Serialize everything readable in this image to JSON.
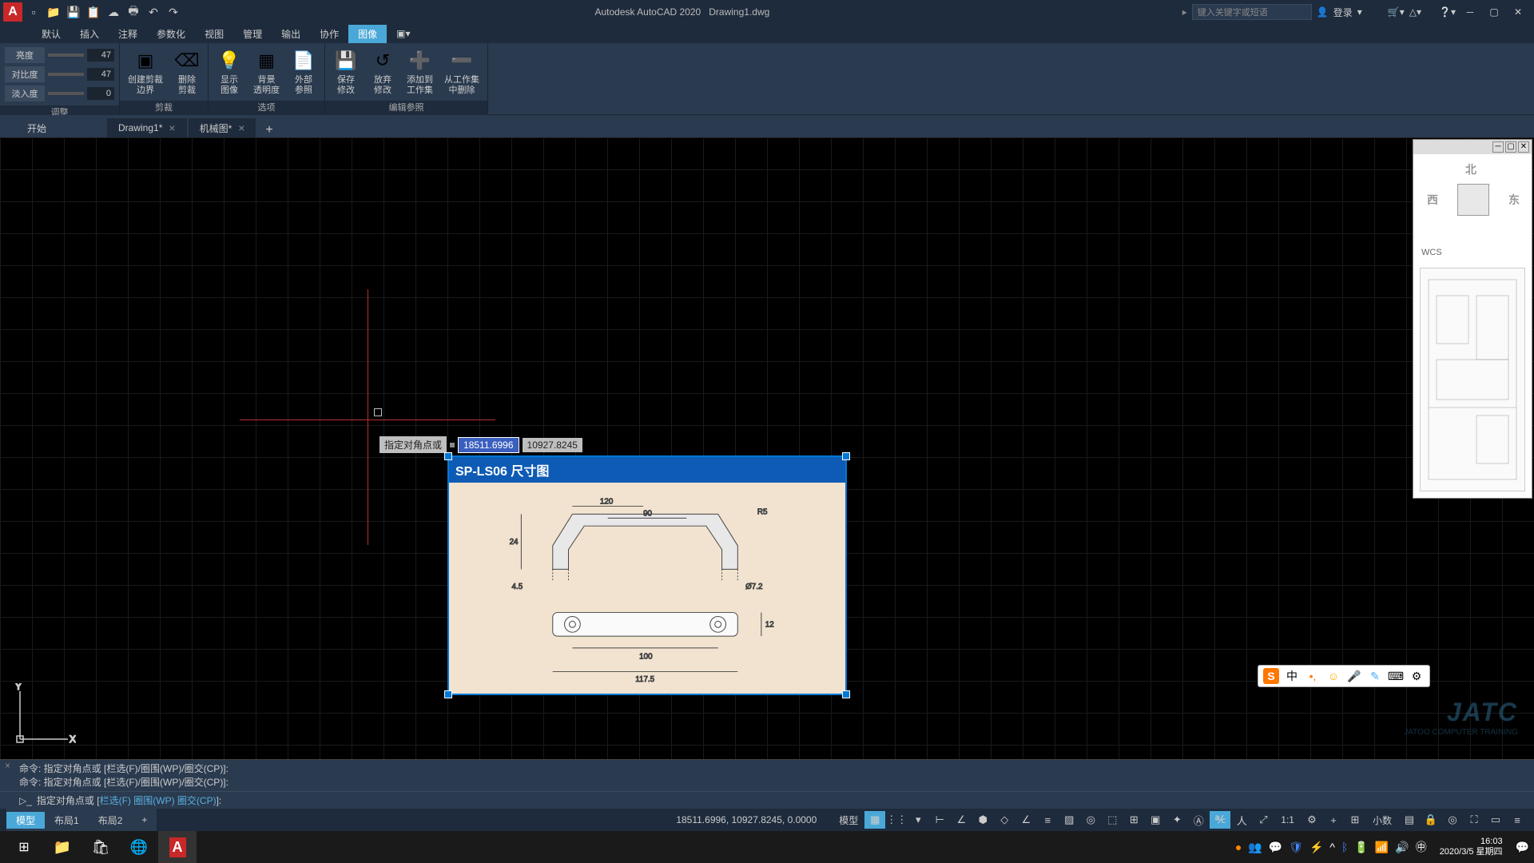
{
  "title": {
    "app": "Autodesk AutoCAD 2020",
    "file": "Drawing1.dwg"
  },
  "search_placeholder": "键入关键字或短语",
  "login": "登录",
  "menu": {
    "items": [
      "默认",
      "插入",
      "注释",
      "参数化",
      "视图",
      "管理",
      "输出",
      "协作",
      "图像"
    ],
    "active_index": 8
  },
  "ribbon": {
    "adjust": {
      "title": "调整",
      "brightness_label": "亮度",
      "brightness": "47",
      "contrast_label": "对比度",
      "contrast": "47",
      "fade_label": "淡入度",
      "fade": "0"
    },
    "clip": {
      "title": "剪裁",
      "create": "创建剪裁\n边界",
      "remove": "删除\n剪裁"
    },
    "options": {
      "title": "选项",
      "show": "显示\n图像",
      "bg": "背景\n透明度",
      "ext": "外部\n参照"
    },
    "edit": {
      "title": "编辑参照",
      "save": "保存\n修改",
      "discard": "放弃\n修改",
      "add": "添加到\n工作集",
      "rem": "从工作集\n中删除"
    }
  },
  "doctabs": {
    "start": "开始",
    "t1": "Drawing1*",
    "t2": "机械图*"
  },
  "dynamic_input": {
    "label": "指定对角点或",
    "x": "18511.6996",
    "y": "10927.8245"
  },
  "embed": {
    "title": "SP-LS06  尺寸图",
    "d_120": "120",
    "d_90": "90",
    "d_r5": "R5",
    "d_24": "24",
    "d_4_5": "4.5",
    "d_7_2": "Ø7.2",
    "d_12": "12",
    "d_100": "100",
    "d_117_5": "117.5"
  },
  "nav": {
    "north": "北",
    "west": "西",
    "east": "东",
    "wcs": "WCS"
  },
  "cmd": {
    "hist1": "命令: 指定对角点或 [栏选(F)/圈围(WP)/圈交(CP)]:",
    "hist2": "命令: 指定对角点或 [栏选(F)/圈围(WP)/圈交(CP)]:",
    "prompt": "指定对角点或 [",
    "opt1": "栏选(F)",
    "opt2": "圈围(WP)",
    "opt3": "圈交(CP)",
    "end": "]:"
  },
  "layout": {
    "model": "模型",
    "l1": "布局1",
    "l2": "布局2"
  },
  "status": {
    "coords": "18511.6996, 10927.8245, 0.0000",
    "model": "模型",
    "scale": "1:1",
    "decimal": "小数"
  },
  "taskbar": {
    "time": "16:03",
    "date": "2020/3/5 星期四"
  },
  "ime_ch": "中",
  "watermark": "JATC"
}
